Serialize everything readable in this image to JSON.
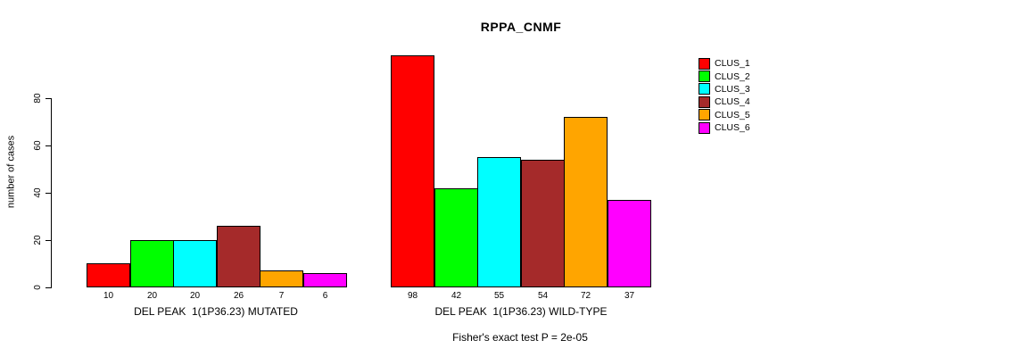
{
  "chart_data": {
    "type": "bar",
    "title": "RPPA_CNMF",
    "ylabel": "number of cases",
    "xlabel": "",
    "ylim": [
      0,
      80
    ],
    "yticks": [
      0,
      20,
      40,
      60,
      80
    ],
    "grid": false,
    "legend_position": "right",
    "legend": [
      {
        "label": "CLUS_1",
        "color": "#FF0000"
      },
      {
        "label": "CLUS_2",
        "color": "#00FF00"
      },
      {
        "label": "CLUS_3",
        "color": "#00FFFF"
      },
      {
        "label": "CLUS_4",
        "color": "#A52A2A"
      },
      {
        "label": "CLUS_5",
        "color": "#FFA500"
      },
      {
        "label": "CLUS_6",
        "color": "#FF00FF"
      }
    ],
    "groups": [
      {
        "label": "DEL PEAK  1(1P36.23) MUTATED",
        "values": [
          10,
          20,
          20,
          26,
          7,
          6
        ]
      },
      {
        "label": "DEL PEAK  1(1P36.23) WILD-TYPE",
        "values": [
          98,
          42,
          55,
          54,
          72,
          37
        ]
      }
    ],
    "annotation": "Fisher's exact test P = 2e-05"
  }
}
